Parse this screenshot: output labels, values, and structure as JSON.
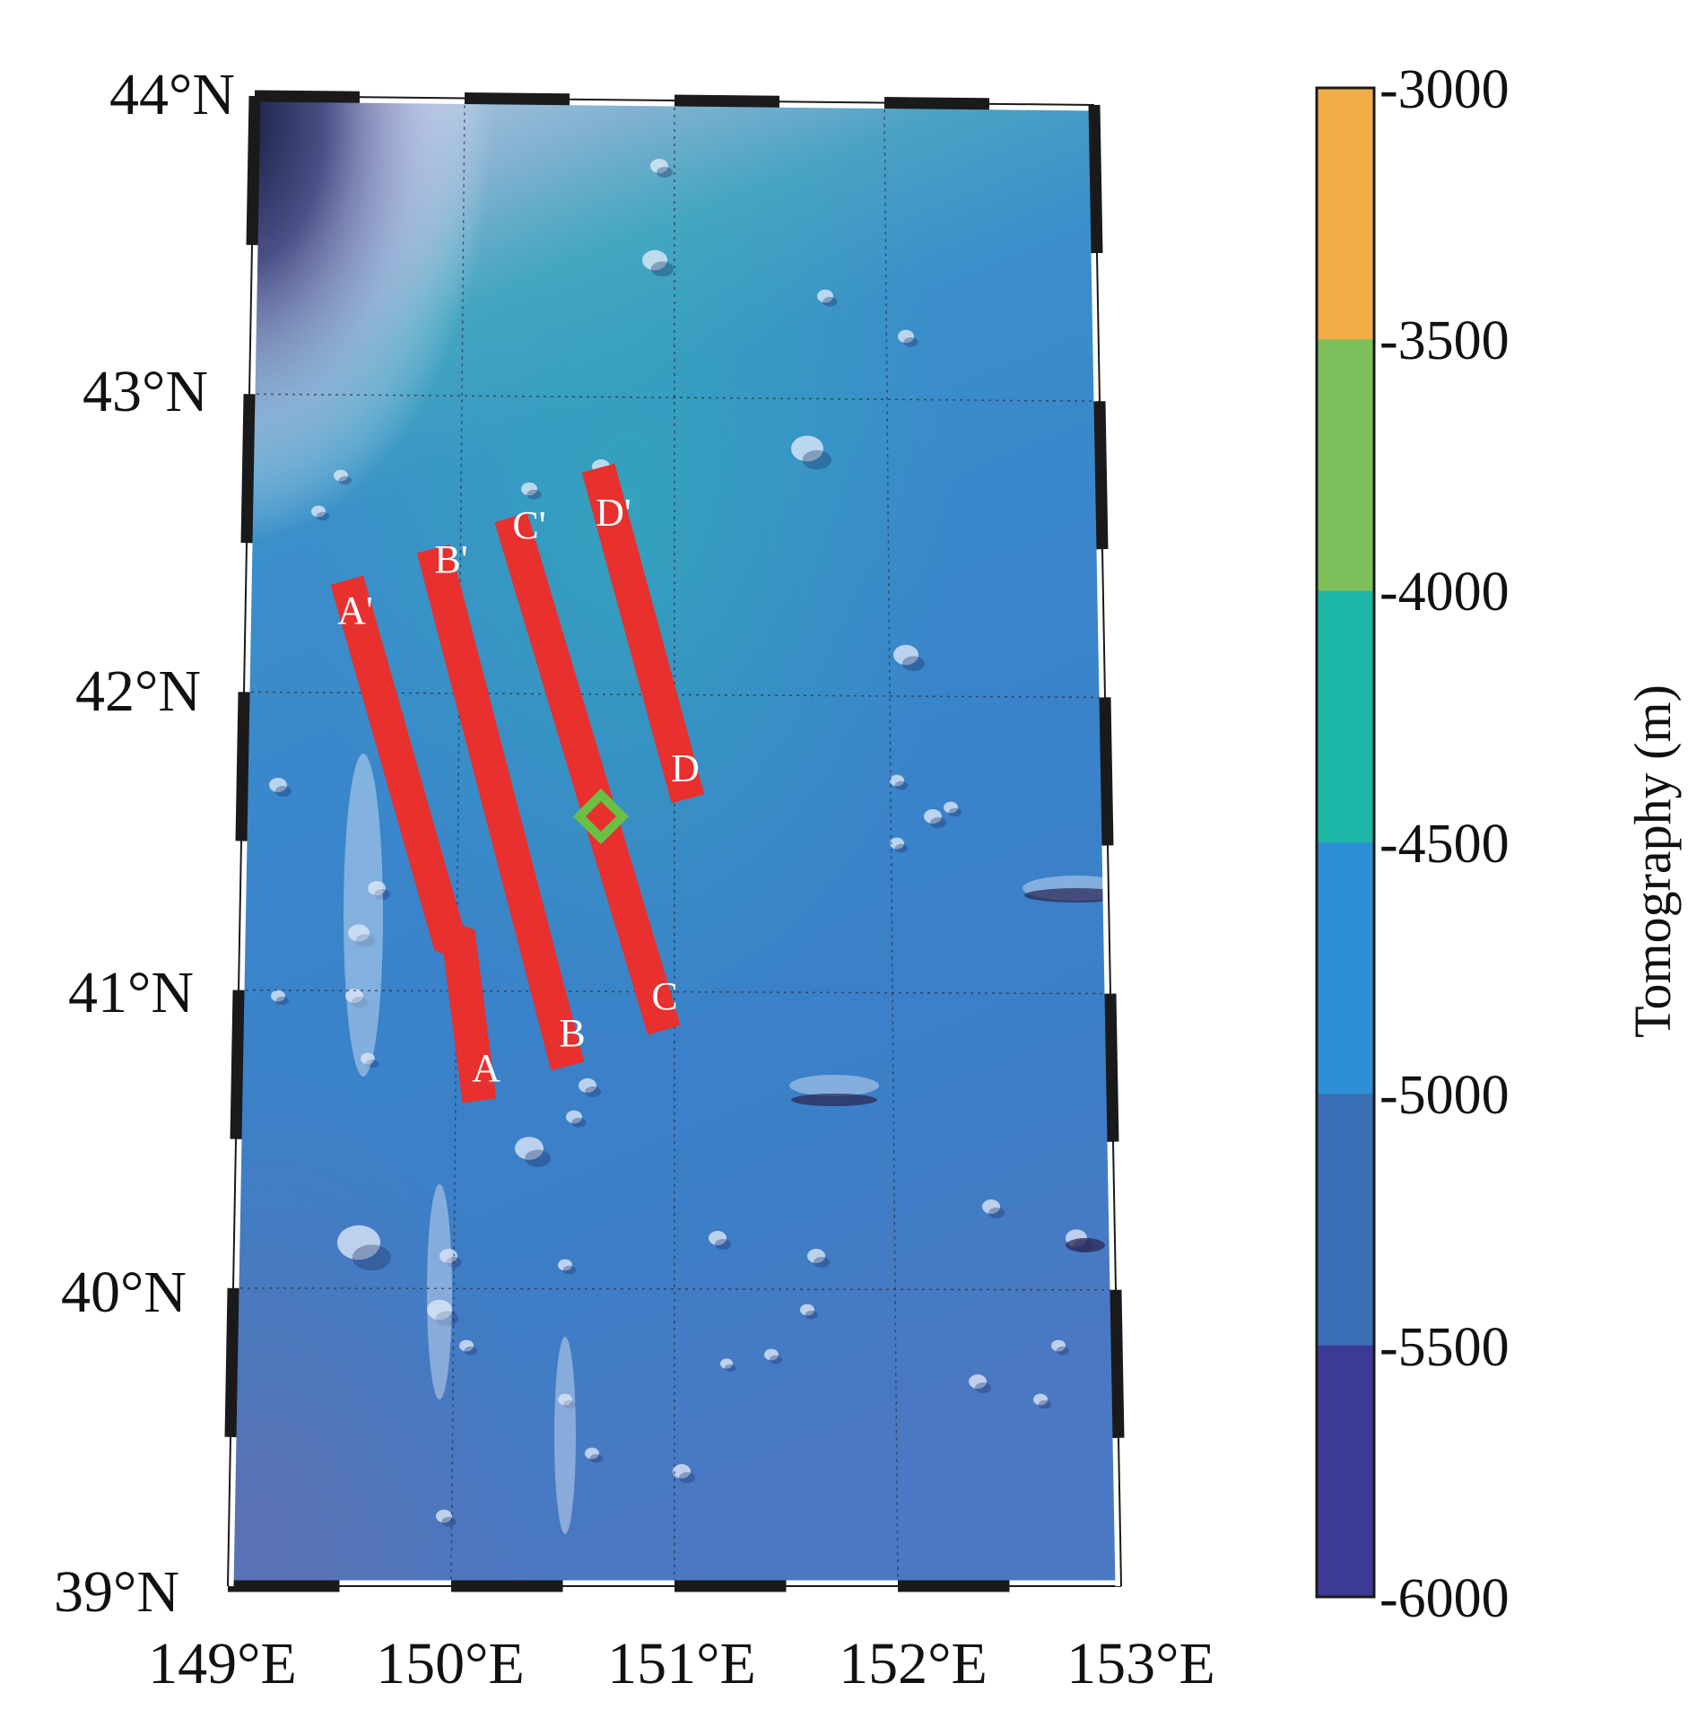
{
  "map": {
    "lat_labels": [
      "44°N",
      "43°N",
      "42°N",
      "41°N",
      "40°N",
      "39°N"
    ],
    "lon_labels": [
      "149°E",
      "150°E",
      "151°E",
      "152°E",
      "153°E"
    ],
    "profiles": [
      {
        "name": "A",
        "start_label": "A",
        "end_label": "A'"
      },
      {
        "name": "B",
        "start_label": "B",
        "end_label": "B'"
      },
      {
        "name": "C",
        "start_label": "C",
        "end_label": "C'"
      },
      {
        "name": "D",
        "start_label": "D",
        "end_label": "D'"
      }
    ],
    "marker": {
      "shape": "diamond",
      "color": "#6abf45"
    },
    "profile_color": "#e8302e"
  },
  "colorbar": {
    "title": "Tomography (m)",
    "tick_labels": [
      "-3000",
      "-3500",
      "-4000",
      "-4500",
      "-5000",
      "-5500",
      "-6000"
    ],
    "colors": [
      "#f2ac48",
      "#7cbf5b",
      "#1eb6a6",
      "#2d8fd3",
      "#3a6fb6",
      "#3d3a96"
    ]
  }
}
